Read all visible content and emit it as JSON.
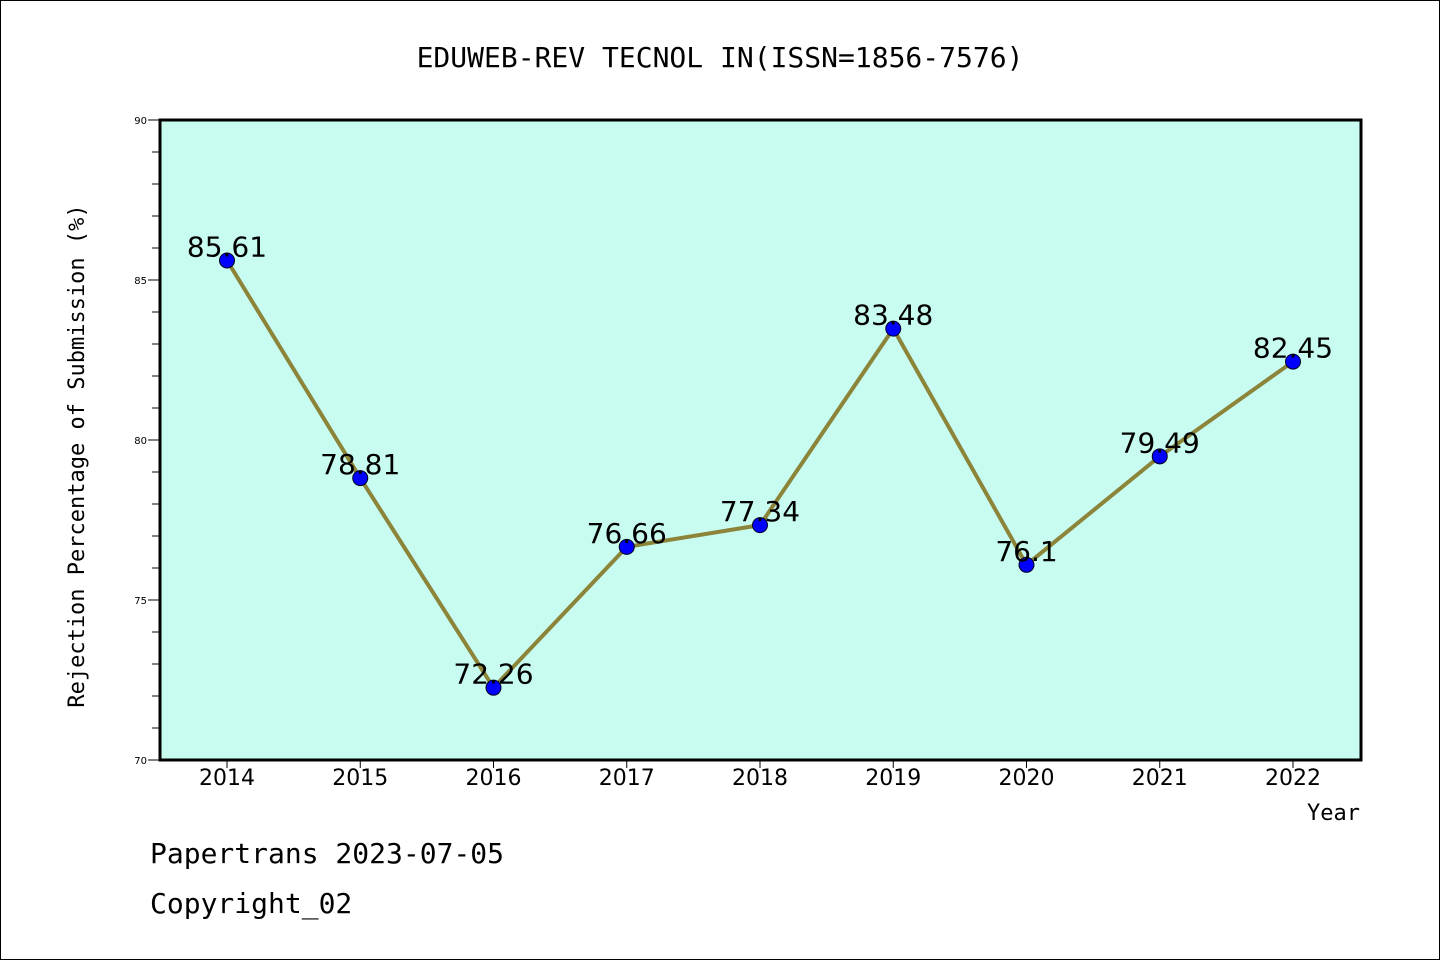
{
  "chart_data": {
    "type": "line",
    "title": "EDUWEB-REV TECNOL IN(ISSN=1856-7576)",
    "xlabel": "Year",
    "ylabel": "Rejection Percentage of Submission (%)",
    "categories": [
      "2014",
      "2015",
      "2016",
      "2017",
      "2018",
      "2019",
      "2020",
      "2021",
      "2022"
    ],
    "values": [
      85.61,
      78.81,
      72.26,
      76.66,
      77.34,
      83.48,
      76.1,
      79.49,
      82.45
    ],
    "data_labels": [
      "85.61",
      "78.81",
      "72.26",
      "76.66",
      "77.34",
      "83.48",
      "76.1",
      "79.49",
      "82.45"
    ],
    "ylim": [
      70,
      90
    ],
    "yticks": [
      "70",
      "75",
      "80",
      "85",
      "90"
    ],
    "grid": false,
    "legend": "none",
    "colors": {
      "plot_background": "#c8fcf0",
      "line": "#8b8439",
      "marker": "#0000ff"
    }
  },
  "footer": {
    "line1": "Papertrans 2023-07-05",
    "line2": "Copyright_02"
  }
}
